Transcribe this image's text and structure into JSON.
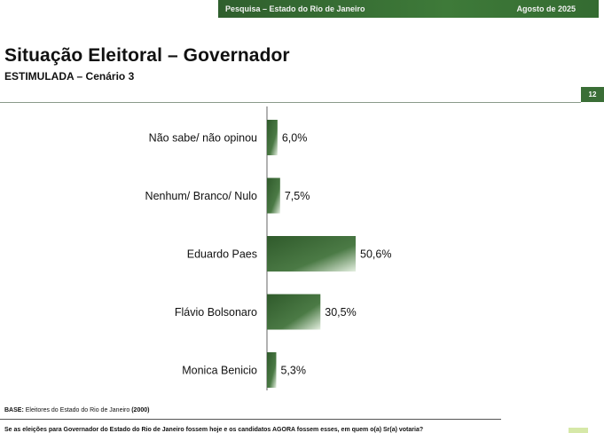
{
  "header": {
    "survey_label": "Pesquisa – Estado do Rio de Janeiro",
    "date_label": "Agosto de 2025"
  },
  "page_number": "12",
  "chart_data": {
    "type": "bar",
    "orientation": "horizontal",
    "title": "Situação Eleitoral – Governador",
    "subtitle": "ESTIMULADA – Cenário 3",
    "categories": [
      "Não sabe/ não opinou",
      "Nenhum/ Branco/ Nulo",
      "Eduardo Paes",
      "Flávio Bolsonaro",
      "Monica Benicio"
    ],
    "values": [
      6.0,
      7.5,
      50.6,
      30.5,
      5.3
    ],
    "value_labels": [
      "6,0%",
      "7,5%",
      "50,6%",
      "30,5%",
      "5,3%"
    ],
    "xlim": [
      0,
      100
    ],
    "grid": false,
    "legend": "none",
    "colors": {
      "bar_dark": "#2f5a2b",
      "bar_light": "#e4efe0",
      "axis": "#666666"
    }
  },
  "footer": {
    "base_label": "BASE:",
    "base_text": "Eleitores do Estado do Rio de Janeiro",
    "base_count": "(2000)",
    "question": "Se as eleições para Governador do Estado do Rio de Janeiro fossem hoje e os candidatos AGORA fossem esses, em quem o(a) Sr(a) votaria?"
  }
}
